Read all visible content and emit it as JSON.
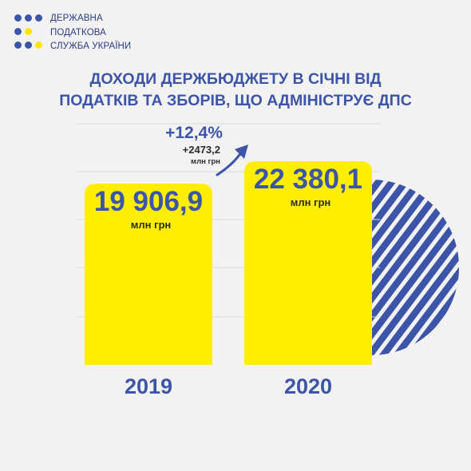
{
  "logo": {
    "lines": [
      "ДЕРЖАВНА",
      "ПОДАТКОВА",
      "СЛУЖБА УКРАЇНИ"
    ],
    "colors": {
      "blue": "#3d55a8",
      "yellow": "#ffe500"
    }
  },
  "title_lines": [
    "ДОХОДИ ДЕРЖБЮДЖЕТУ В СІЧНІ ВІД",
    "ПОДАТКІВ ТА ЗБОРІВ, ЩО АДМІНІСТРУЄ ДПС"
  ],
  "chart_data": {
    "type": "bar",
    "title": "ДОХОДИ ДЕРЖБЮДЖЕТУ В СІЧНІ ВІД ПОДАТКІВ ТА ЗБОРІВ, ЩО АДМІНІСТРУЄ ДПС",
    "categories": [
      "2019",
      "2020"
    ],
    "values": [
      19906.9,
      22380.1
    ],
    "value_labels": [
      "19 906,9",
      "22 380,1"
    ],
    "unit_label": "млн грн",
    "change": {
      "percent_label": "+12,4%",
      "abs_label": "+2473,2",
      "abs_unit": "млн грн"
    },
    "bar_color": "#ffee00",
    "text_color": "#3d55a8",
    "grid": true,
    "legend": "none"
  }
}
